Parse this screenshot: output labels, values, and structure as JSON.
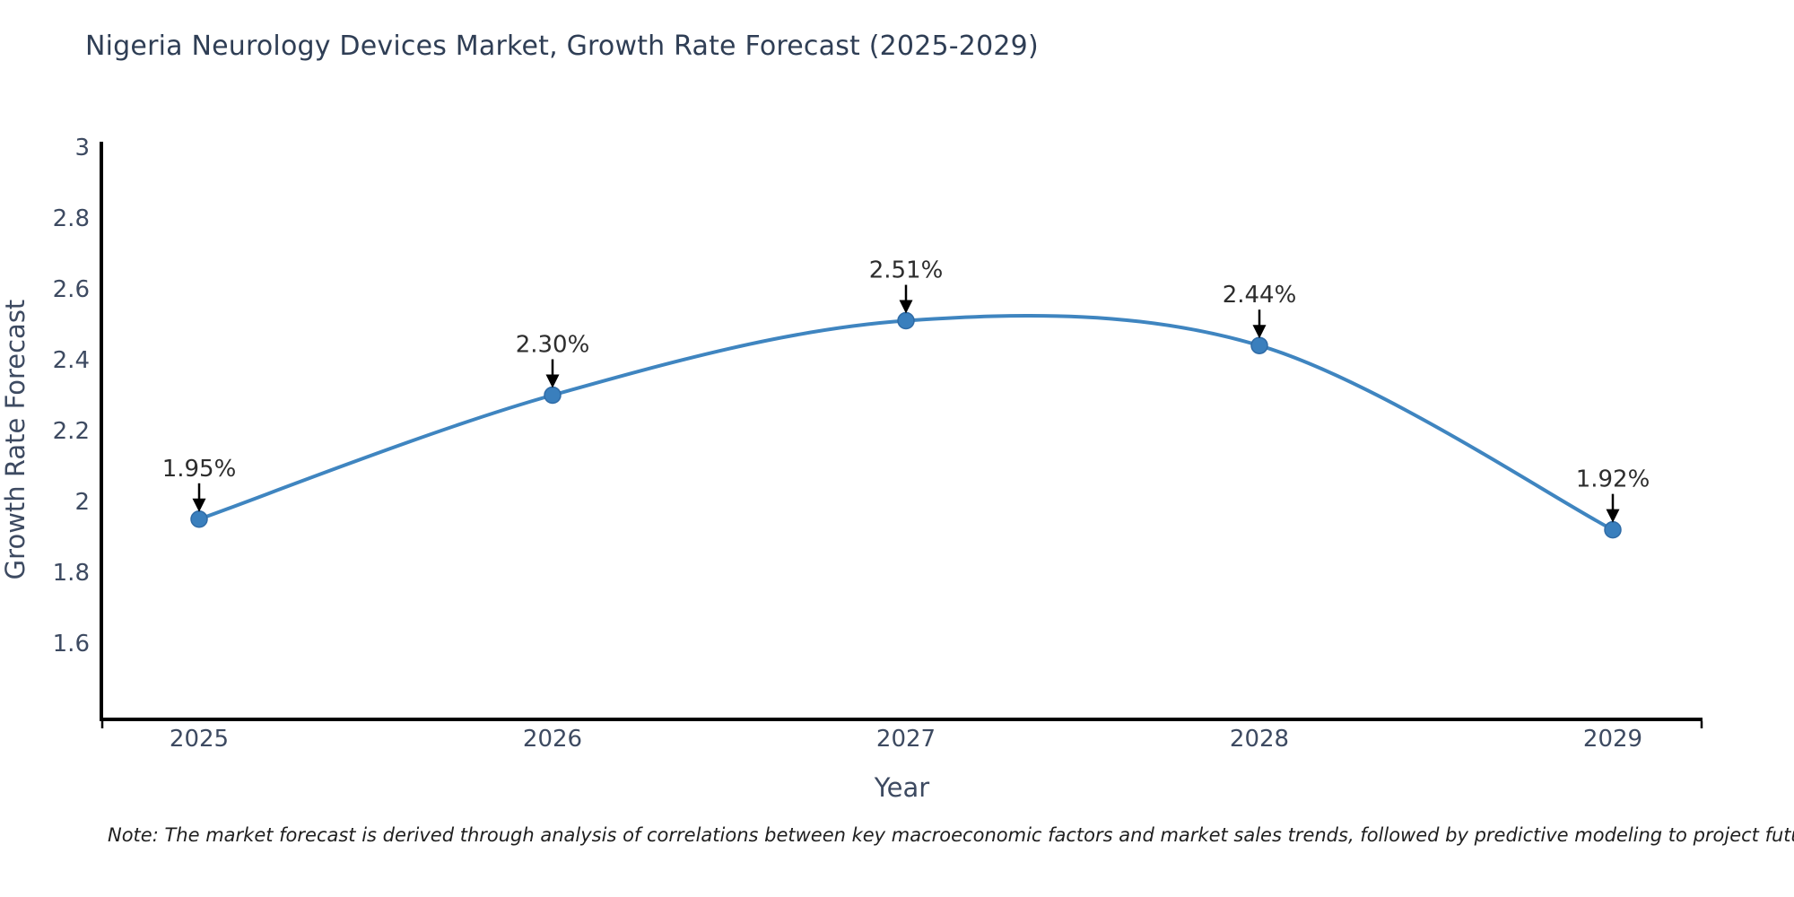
{
  "page": {
    "title": "Nigeria Neurology Devices Market, Growth Rate Forecast (2025-2029)",
    "note": "Note: The market forecast is derived through analysis of correlations between key macroeconomic factors and market sales trends, followed by predictive modeling to project future sales"
  },
  "chart_data": {
    "type": "line",
    "title": "Nigeria Neurology Devices Market, Growth Rate Forecast (2025-2029)",
    "x": [
      "2025",
      "2026",
      "2027",
      "2028",
      "2029"
    ],
    "series": [
      {
        "name": "Growth Rate Forecast",
        "values": [
          1.95,
          2.3,
          2.51,
          2.44,
          1.92
        ]
      }
    ],
    "point_labels": [
      "1.95%",
      "2.30%",
      "2.51%",
      "2.44%",
      "1.92%"
    ],
    "xlabel": "Year",
    "ylabel": "Growth Rate Forecast",
    "ylim": [
      1.385,
      3.01
    ],
    "yticks": [
      3,
      2.8,
      2.6,
      2.4,
      2.2,
      2,
      1.8,
      1.6
    ],
    "ytick_labels": [
      "3",
      "2.8",
      "2.6",
      "2.4",
      "2.2",
      "2",
      "1.8",
      "1.6"
    ],
    "grid": false,
    "legend": "none",
    "curve": "smooth",
    "annotation_style": "arrow-down-to-point",
    "colors": {
      "line": "#3f85c0",
      "marker": "#3a7fbd",
      "marker_edge": "#2f6ba6",
      "arrow": "#000000",
      "axis": "#000000",
      "tick_label": "#3d4a61",
      "axis_label": "#3d4a61",
      "title": "#2f3e55",
      "annotation": "#2d2d2d"
    }
  }
}
